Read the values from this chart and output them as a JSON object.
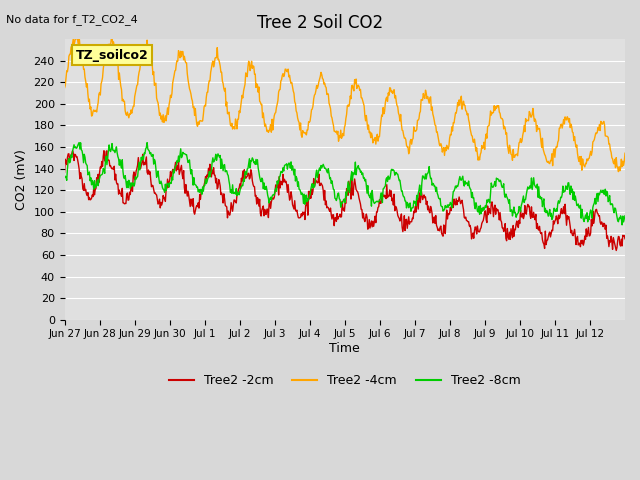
{
  "title": "Tree 2 Soil CO2",
  "subtitle": "No data for f_T2_CO2_4",
  "ylabel": "CO2 (mV)",
  "xlabel": "Time",
  "legend_label": "TZ_soilco2",
  "ylim": [
    0,
    260
  ],
  "yticks": [
    0,
    20,
    40,
    60,
    80,
    100,
    120,
    140,
    160,
    180,
    200,
    220,
    240
  ],
  "xtick_labels": [
    "Jun 27",
    "Jun 28",
    "Jun 29",
    "Jun 30",
    "Jul 1",
    "Jul 2",
    "Jul 3",
    "Jul 4",
    "Jul 5",
    "Jul 6",
    "Jul 7",
    "Jul 8",
    "Jul 9",
    "Jul 10",
    "Jul 11",
    "Jul 12"
  ],
  "line_color_2cm": "#cc0000",
  "line_color_4cm": "#ffa500",
  "line_color_8cm": "#00cc00",
  "fig_bg_color": "#d8d8d8",
  "plot_bg_color": "#e0e0e0",
  "legend_box_color": "#ffff99",
  "legend_box_edge": "#ccaa00",
  "series_2cm_label": "Tree2 -2cm",
  "series_4cm_label": "Tree2 -4cm",
  "series_8cm_label": "Tree2 -8cm"
}
